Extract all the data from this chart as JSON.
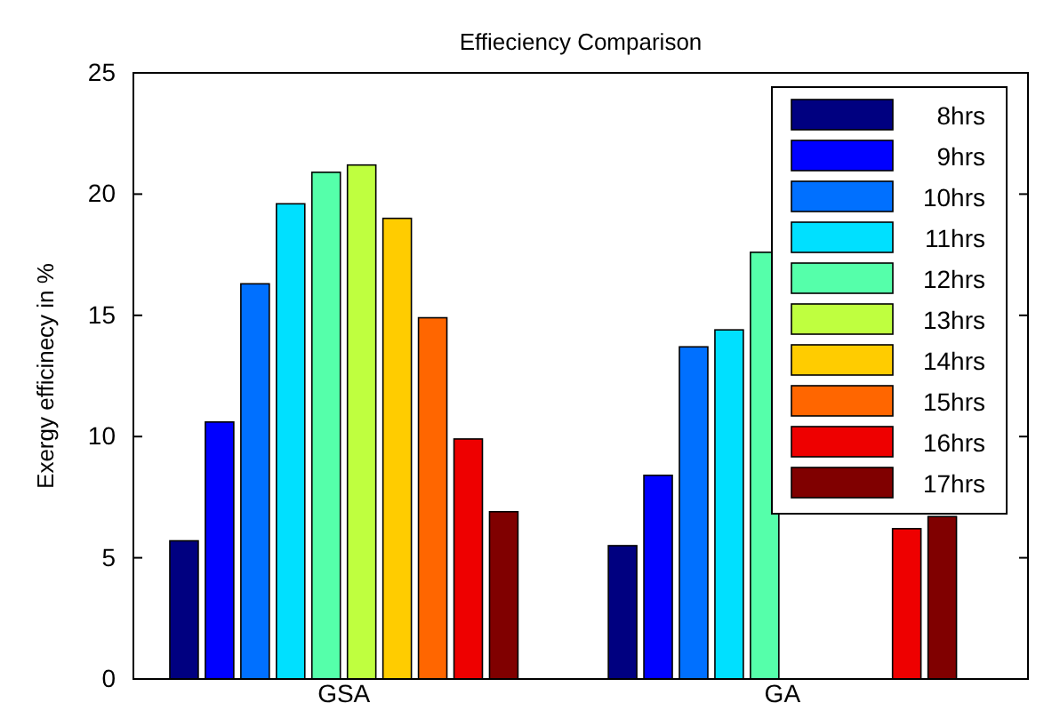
{
  "chart_data": {
    "type": "bar",
    "title": "Effieciency Comparison",
    "ylabel": "Exergy efficinecy in %",
    "categories": [
      "GSA",
      "GA"
    ],
    "ylim": [
      0,
      25
    ],
    "yticks": [
      0,
      5,
      10,
      15,
      20,
      25
    ],
    "grid": false,
    "legend": "top right",
    "series": [
      {
        "name": "8hrs",
        "color": "#000080",
        "values": [
          5.7,
          5.5
        ]
      },
      {
        "name": "9hrs",
        "color": "#0000ff",
        "values": [
          10.6,
          8.4
        ]
      },
      {
        "name": "10hrs",
        "color": "#0070ff",
        "values": [
          16.3,
          13.7
        ]
      },
      {
        "name": "11hrs",
        "color": "#00e0ff",
        "values": [
          19.6,
          14.4
        ]
      },
      {
        "name": "12hrs",
        "color": "#55ffaa",
        "values": [
          20.9,
          17.6
        ]
      },
      {
        "name": "13hrs",
        "color": "#bfff3f",
        "values": [
          21.2,
          null
        ]
      },
      {
        "name": "14hrs",
        "color": "#ffcc00",
        "values": [
          19.0,
          null
        ]
      },
      {
        "name": "15hrs",
        "color": "#ff6600",
        "values": [
          14.9,
          null
        ]
      },
      {
        "name": "16hrs",
        "color": "#ee0000",
        "values": [
          9.9,
          6.2
        ]
      },
      {
        "name": "17hrs",
        "color": "#800000",
        "values": [
          6.9,
          6.7
        ]
      }
    ]
  }
}
